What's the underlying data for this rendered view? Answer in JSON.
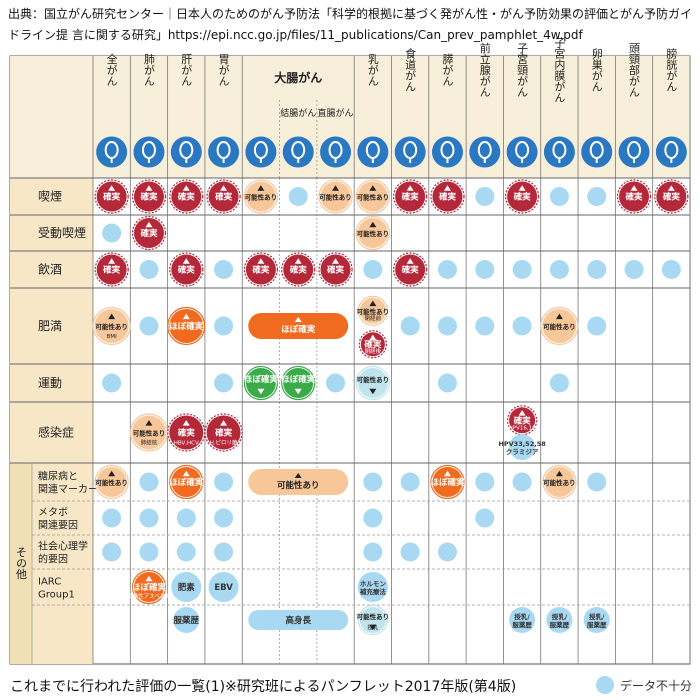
{
  "source": "出典：国立がん研究センター｜日本人のためのがん予防法「科学的根拠に基づく発がん性・がん予防効果の評価とがん予防ガイドライン提 言に関する研究」https://epi.ncc.go.jp/files/11_publications/Can_prev_pamphlet_4w.pdf",
  "footer": "これまでに行われた評価の一覧(1)※研究班によるパンフレット2017年版(第4版)",
  "legend": {
    "insufficient": "データ不十分"
  },
  "colors": {
    "certain": "#b5283a",
    "probable": "#f06a1f",
    "possible": "#f7c79a",
    "decrease": "#3bab4a",
    "insufficient": "#a9d9f2",
    "header_bg": "#f7efd9",
    "side_bg": "#f7e7c7"
  },
  "chart_data": {
    "type": "table",
    "columns": [
      {
        "key": "all",
        "label": "全がん",
        "icon": "body-icon"
      },
      {
        "key": "lung",
        "label": "肺がん",
        "icon": "lung-icon"
      },
      {
        "key": "liver",
        "label": "肝がん",
        "icon": "liver-icon"
      },
      {
        "key": "stomach",
        "label": "胃がん",
        "icon": "stomach-icon"
      },
      {
        "key": "colorectal",
        "label": "大腸がん",
        "icon": "colon-icon"
      },
      {
        "key": "colon",
        "label": "結腸がん",
        "icon": "colon-section-icon"
      },
      {
        "key": "rectum",
        "label": "直腸がん",
        "icon": "rectum-icon"
      },
      {
        "key": "breast",
        "label": "乳がん",
        "icon": "breast-icon"
      },
      {
        "key": "esophagus",
        "label": "食道がん",
        "icon": "esophagus-icon"
      },
      {
        "key": "pancreas",
        "label": "膵がん",
        "icon": "pancreas-icon"
      },
      {
        "key": "prostate",
        "label": "前立腺がん",
        "icon": "prostate-icon"
      },
      {
        "key": "cervix",
        "label": "子宮頸がん",
        "icon": "cervix-icon"
      },
      {
        "key": "endometrium",
        "label": "子宮内膜がん",
        "icon": "uterus-icon"
      },
      {
        "key": "ovary",
        "label": "卵巣がん",
        "icon": "ovary-icon"
      },
      {
        "key": "headneck",
        "label": "頭頸部がん",
        "icon": "head-neck-icon"
      },
      {
        "key": "bladder",
        "label": "膀胱がん",
        "icon": "bladder-icon"
      }
    ],
    "group_label": "その他",
    "rows": [
      {
        "label": "喫煙",
        "cells": [
          {
            "c": 0,
            "t": "certain",
            "txt": "確実",
            "arrow": "up"
          },
          {
            "c": 1,
            "t": "certain",
            "txt": "確実",
            "arrow": "up"
          },
          {
            "c": 2,
            "t": "certain",
            "txt": "確実",
            "arrow": "up"
          },
          {
            "c": 3,
            "t": "certain",
            "txt": "確実",
            "arrow": "up"
          },
          {
            "c": 4,
            "t": "possible",
            "txt": "可能性あり",
            "arrow": "up"
          },
          {
            "c": 5,
            "t": "insufficient"
          },
          {
            "c": 6,
            "t": "possible",
            "txt": "可能性あり",
            "arrow": "up"
          },
          {
            "c": 7,
            "t": "possible",
            "txt": "可能性あり",
            "arrow": "up"
          },
          {
            "c": 8,
            "t": "certain",
            "txt": "確実",
            "arrow": "up"
          },
          {
            "c": 9,
            "t": "certain",
            "txt": "確実",
            "arrow": "up"
          },
          {
            "c": 10,
            "t": "insufficient"
          },
          {
            "c": 11,
            "t": "certain",
            "txt": "確実",
            "arrow": "up"
          },
          {
            "c": 12,
            "t": "insufficient"
          },
          {
            "c": 13,
            "t": "insufficient"
          },
          {
            "c": 14,
            "t": "certain",
            "txt": "確実",
            "arrow": "up"
          },
          {
            "c": 15,
            "t": "certain",
            "txt": "確実",
            "arrow": "up"
          }
        ]
      },
      {
        "label": "受動喫煙",
        "cells": [
          {
            "c": 0,
            "t": "insufficient"
          },
          {
            "c": 1,
            "t": "certain",
            "txt": "確実",
            "arrow": "up"
          },
          {
            "c": 7,
            "t": "possible",
            "txt": "可能性あり",
            "arrow": "up"
          }
        ]
      },
      {
        "label": "飲酒",
        "cells": [
          {
            "c": 0,
            "t": "certain",
            "txt": "確実",
            "arrow": "up"
          },
          {
            "c": 1,
            "t": "insufficient"
          },
          {
            "c": 2,
            "t": "certain",
            "txt": "確実",
            "arrow": "up"
          },
          {
            "c": 3,
            "t": "insufficient"
          },
          {
            "c": 4,
            "t": "certain",
            "txt": "確実",
            "arrow": "up"
          },
          {
            "c": 5,
            "t": "certain",
            "txt": "確実",
            "arrow": "up"
          },
          {
            "c": 6,
            "t": "certain",
            "txt": "確実",
            "arrow": "up"
          },
          {
            "c": 7,
            "t": "insufficient"
          },
          {
            "c": 8,
            "t": "certain",
            "txt": "確実",
            "arrow": "up"
          },
          {
            "c": 9,
            "t": "insufficient"
          },
          {
            "c": 10,
            "t": "insufficient"
          },
          {
            "c": 11,
            "t": "insufficient"
          },
          {
            "c": 12,
            "t": "insufficient"
          },
          {
            "c": 13,
            "t": "insufficient"
          },
          {
            "c": 14,
            "t": "insufficient"
          },
          {
            "c": 15,
            "t": "insufficient"
          }
        ]
      },
      {
        "label": "肥満",
        "cells": [
          {
            "c": 0,
            "t": "possible",
            "txt": "可能性あり",
            "sub": "BMI 男18.5未満 女30以上",
            "arrow": "up"
          },
          {
            "c": 1,
            "t": "insufficient"
          },
          {
            "c": 2,
            "t": "probable",
            "txt": "ほぼ確実",
            "arrow": "up"
          },
          {
            "c": 3,
            "t": "insufficient"
          },
          {
            "c": 4,
            "t": "probable",
            "txt": "ほぼ確実",
            "arrow": "up",
            "span": 3
          },
          {
            "c": 7,
            "t": "possible",
            "txt": "可能性あり",
            "sub": "閉経前 BMI30以上",
            "arrow": "up",
            "stack": {
              "t": "certain",
              "txt": "確実",
              "sub": "閉経後",
              "arrow": "up"
            }
          },
          {
            "c": 8,
            "t": "insufficient"
          },
          {
            "c": 9,
            "t": "insufficient"
          },
          {
            "c": 10,
            "t": "insufficient"
          },
          {
            "c": 11,
            "t": "insufficient"
          },
          {
            "c": 12,
            "t": "possible",
            "txt": "可能性あり",
            "arrow": "up"
          },
          {
            "c": 13,
            "t": "insufficient"
          }
        ]
      },
      {
        "label": "運動",
        "cells": [
          {
            "c": 0,
            "t": "insufficient"
          },
          {
            "c": 3,
            "t": "insufficient"
          },
          {
            "c": 4,
            "t": "decrease",
            "txt": "ほぼ確実",
            "arrow": "down"
          },
          {
            "c": 5,
            "t": "decrease",
            "txt": "ほぼ確実",
            "arrow": "down"
          },
          {
            "c": 6,
            "t": "insufficient"
          },
          {
            "c": 7,
            "t": "decrease-light",
            "txt": "可能性あり",
            "arrow": "down"
          },
          {
            "c": 9,
            "t": "insufficient"
          },
          {
            "c": 12,
            "t": "insufficient"
          }
        ]
      },
      {
        "label": "感染症",
        "cells": [
          {
            "c": 1,
            "t": "possible",
            "txt": "可能性あり",
            "sub": "肺結核",
            "arrow": "up"
          },
          {
            "c": 2,
            "t": "certain",
            "txt": "確実",
            "sub": "HBV,HCV",
            "arrow": "up"
          },
          {
            "c": 3,
            "t": "certain",
            "txt": "確実",
            "sub": "H.ピロリ菌",
            "arrow": "up"
          },
          {
            "c": 11,
            "t": "certain",
            "txt": "確実",
            "sub": "HPV16,18",
            "arrow": "up",
            "stack": {
              "t": "insufficient",
              "txt": "HPV33,52,58 クラミジア"
            }
          }
        ]
      },
      {
        "label": "糖尿病と 関連マーカー",
        "group": true,
        "cells": [
          {
            "c": 0,
            "t": "possible",
            "txt": "可能性あり",
            "arrow": "up"
          },
          {
            "c": 1,
            "t": "insufficient"
          },
          {
            "c": 2,
            "t": "probable",
            "txt": "ほぼ確実",
            "arrow": "up"
          },
          {
            "c": 3,
            "t": "insufficient"
          },
          {
            "c": 4,
            "t": "possible",
            "txt": "可能性あり",
            "arrow": "up",
            "span": 3
          },
          {
            "c": 7,
            "t": "insufficient"
          },
          {
            "c": 8,
            "t": "insufficient"
          },
          {
            "c": 9,
            "t": "probable",
            "txt": "ほぼ確実",
            "arrow": "up"
          },
          {
            "c": 10,
            "t": "insufficient"
          },
          {
            "c": 11,
            "t": "insufficient"
          },
          {
            "c": 12,
            "t": "possible",
            "txt": "可能性あり",
            "arrow": "up"
          },
          {
            "c": 13,
            "t": "insufficient"
          }
        ]
      },
      {
        "label": "メタボ 関連要因",
        "group": true,
        "cells": [
          {
            "c": 0,
            "t": "insufficient"
          },
          {
            "c": 1,
            "t": "insufficient"
          },
          {
            "c": 2,
            "t": "insufficient"
          },
          {
            "c": 3,
            "t": "insufficient"
          },
          {
            "c": 7,
            "t": "insufficient"
          },
          {
            "c": 10,
            "t": "insufficient"
          }
        ]
      },
      {
        "label": "社会心理学 的要因",
        "group": true,
        "cells": [
          {
            "c": 0,
            "t": "insufficient"
          },
          {
            "c": 1,
            "t": "insufficient"
          },
          {
            "c": 2,
            "t": "insufficient"
          },
          {
            "c": 3,
            "t": "insufficient"
          },
          {
            "c": 7,
            "t": "insufficient"
          },
          {
            "c": 8,
            "t": "insufficient"
          },
          {
            "c": 9,
            "t": "insufficient"
          }
        ]
      },
      {
        "label": "IARC Group1",
        "group": true,
        "cells": [
          {
            "c": 1,
            "t": "probable",
            "txt": "ほぼ確実",
            "sub": "職業性アスベスト",
            "arrow": "up"
          },
          {
            "c": 2,
            "t": "insufficient",
            "txt": "肥素"
          },
          {
            "c": 3,
            "t": "insufficient",
            "txt": "EBV"
          },
          {
            "c": 7,
            "t": "insufficient",
            "txt": "ホルモン 補充療法"
          }
        ]
      },
      {
        "label": "",
        "group": true,
        "cells": [
          {
            "c": 2,
            "t": "insufficient",
            "txt": "服薬歴"
          },
          {
            "c": 4,
            "t": "insufficient",
            "txt": "高身長",
            "span": 3
          },
          {
            "c": 7,
            "t": "decrease-light",
            "txt": "可能性あり",
            "sub": "授乳",
            "arrow": "down"
          },
          {
            "c": 11,
            "t": "insufficient",
            "txt": "授乳/ 服薬歴"
          },
          {
            "c": 12,
            "t": "insufficient",
            "txt": "授乳/ 服薬歴"
          },
          {
            "c": 13,
            "t": "insufficient",
            "txt": "授乳/ 服薬歴"
          }
        ]
      }
    ]
  }
}
